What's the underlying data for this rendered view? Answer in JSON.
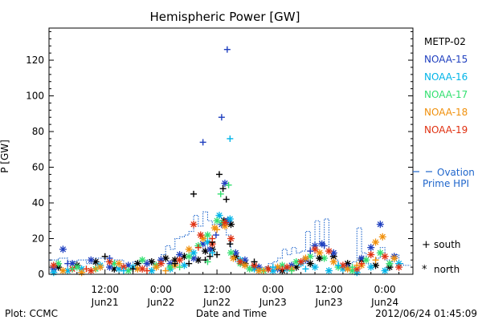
{
  "chart_data": {
    "type": "scatter",
    "title": "Hemispheric Power [GW]",
    "xlabel": "Date and Time",
    "ylabel": "P [GW]",
    "xlim_hours": [
      0,
      78
    ],
    "ylim": [
      0,
      138
    ],
    "y_ticks": [
      0,
      20,
      40,
      60,
      80,
      100,
      120
    ],
    "x_ticks": [
      {
        "h": 12,
        "time": "12:00",
        "date": "Jun21"
      },
      {
        "h": 24,
        "time": "0:00",
        "date": "Jun22"
      },
      {
        "h": 36,
        "time": "12:00",
        "date": "Jun22"
      },
      {
        "h": 48,
        "time": "0:00",
        "date": "Jun23"
      },
      {
        "h": 60,
        "time": "12:00",
        "date": "Jun23"
      },
      {
        "h": 72,
        "time": "0:00",
        "date": "Jun24"
      }
    ],
    "legend_position": "right",
    "satellites": [
      {
        "name": "METP-02",
        "color": "#000000"
      },
      {
        "name": "NOAA-15",
        "color": "#1f3fbf"
      },
      {
        "name": "NOAA-16",
        "color": "#00b4e8"
      },
      {
        "name": "NOAA-17",
        "color": "#33e070"
      },
      {
        "name": "NOAA-18",
        "color": "#f0900c"
      },
      {
        "name": "NOAA-19",
        "color": "#e03010"
      }
    ],
    "ovation_label": [
      "Ovation",
      "Prime HPI"
    ],
    "ovation_color": "#1f66cc",
    "ovation": [
      [
        0,
        8
      ],
      [
        2,
        9
      ],
      [
        4,
        7
      ],
      [
        6,
        8
      ],
      [
        8,
        6
      ],
      [
        10,
        9
      ],
      [
        12,
        7
      ],
      [
        14,
        8
      ],
      [
        16,
        5
      ],
      [
        18,
        7
      ],
      [
        20,
        8
      ],
      [
        22,
        6
      ],
      [
        24,
        11
      ],
      [
        25,
        16
      ],
      [
        26,
        14
      ],
      [
        27,
        20
      ],
      [
        28,
        21
      ],
      [
        29,
        22
      ],
      [
        30,
        24
      ],
      [
        31,
        33
      ],
      [
        32,
        27
      ],
      [
        33,
        35
      ],
      [
        34,
        30
      ],
      [
        35,
        28
      ],
      [
        36,
        32
      ],
      [
        37,
        31
      ],
      [
        38,
        22
      ],
      [
        39,
        9
      ],
      [
        40,
        7
      ],
      [
        41,
        5
      ],
      [
        42,
        4
      ],
      [
        43,
        3
      ],
      [
        44,
        5
      ],
      [
        45,
        3
      ],
      [
        46,
        4
      ],
      [
        47,
        6
      ],
      [
        48,
        7
      ],
      [
        49,
        9
      ],
      [
        50,
        14
      ],
      [
        51,
        11
      ],
      [
        52,
        15
      ],
      [
        53,
        12
      ],
      [
        54,
        13
      ],
      [
        55,
        24
      ],
      [
        56,
        10
      ],
      [
        57,
        30
      ],
      [
        58,
        17
      ],
      [
        59,
        31
      ],
      [
        60,
        13
      ],
      [
        61,
        8
      ],
      [
        62,
        6
      ],
      [
        63,
        5
      ],
      [
        64,
        4
      ],
      [
        65,
        7
      ],
      [
        66,
        26
      ],
      [
        67,
        12
      ],
      [
        68,
        6
      ],
      [
        69,
        5
      ],
      [
        70,
        9
      ],
      [
        71,
        15
      ],
      [
        72,
        8
      ],
      [
        73,
        7
      ],
      [
        74,
        11
      ],
      [
        75,
        6
      ],
      [
        76,
        5
      ]
    ],
    "south": [
      {
        "sat": "METP-02",
        "points": [
          [
            31,
            45
          ],
          [
            35,
            18
          ],
          [
            36.5,
            56
          ],
          [
            37.3,
            48
          ],
          [
            38,
            42
          ],
          [
            38.8,
            17
          ],
          [
            36,
            11
          ],
          [
            34.5,
            10
          ],
          [
            33.5,
            8
          ],
          [
            30,
            6
          ],
          [
            27,
            6
          ],
          [
            12,
            10
          ],
          [
            18,
            3
          ],
          [
            44,
            7
          ],
          [
            58,
            9
          ]
        ]
      },
      {
        "sat": "NOAA-15",
        "points": [
          [
            33,
            74
          ],
          [
            37,
            88
          ],
          [
            38.2,
            126
          ],
          [
            35.8,
            22
          ],
          [
            13,
            9
          ],
          [
            4,
            6
          ],
          [
            56,
            13
          ],
          [
            59,
            16
          ]
        ]
      },
      {
        "sat": "NOAA-16",
        "points": [
          [
            38.8,
            76
          ],
          [
            35,
            12
          ],
          [
            16,
            2
          ],
          [
            48,
            4
          ],
          [
            55,
            3
          ],
          [
            62,
            5
          ]
        ]
      },
      {
        "sat": "NOAA-17",
        "points": [
          [
            36.8,
            45
          ],
          [
            38.5,
            50
          ],
          [
            34,
            7
          ],
          [
            5,
            3
          ],
          [
            28,
            4
          ],
          [
            52,
            2
          ],
          [
            65,
            4
          ]
        ]
      },
      {
        "sat": "NOAA-18",
        "points": [
          [
            36,
            25
          ],
          [
            10,
            3
          ],
          [
            25,
            2
          ],
          [
            46,
            2
          ],
          [
            66,
            5
          ],
          [
            70,
            8
          ]
        ]
      },
      {
        "sat": "NOAA-19",
        "points": [
          [
            32,
            15
          ],
          [
            35,
            20
          ],
          [
            8,
            3
          ],
          [
            21,
            2
          ],
          [
            50,
            3
          ],
          [
            67,
            6
          ]
        ]
      }
    ],
    "north": [
      {
        "sat": "METP-02",
        "points": [
          [
            2,
            4
          ],
          [
            6,
            5
          ],
          [
            10,
            7
          ],
          [
            14,
            3
          ],
          [
            19,
            6
          ],
          [
            22,
            7
          ],
          [
            25,
            9
          ],
          [
            27,
            8
          ],
          [
            29,
            10
          ],
          [
            32,
            8
          ],
          [
            33.5,
            13
          ],
          [
            35,
            14
          ],
          [
            37.5,
            30
          ],
          [
            39,
            28
          ],
          [
            40,
            10
          ],
          [
            42,
            6
          ],
          [
            44,
            4
          ],
          [
            47,
            3
          ],
          [
            50,
            2
          ],
          [
            53,
            4
          ],
          [
            56,
            6
          ],
          [
            58,
            9
          ],
          [
            61,
            10
          ],
          [
            64,
            6
          ],
          [
            67,
            8
          ],
          [
            70,
            5
          ],
          [
            73,
            4
          ]
        ]
      },
      {
        "sat": "NOAA-15",
        "points": [
          [
            1,
            3
          ],
          [
            3,
            14
          ],
          [
            5,
            6
          ],
          [
            9,
            8
          ],
          [
            13,
            4
          ],
          [
            17,
            5
          ],
          [
            21,
            6
          ],
          [
            24,
            8
          ],
          [
            26,
            6
          ],
          [
            28,
            11
          ],
          [
            31,
            9
          ],
          [
            33,
            17
          ],
          [
            34.5,
            14
          ],
          [
            37,
            28
          ],
          [
            37.7,
            51
          ],
          [
            38.3,
            30
          ],
          [
            40,
            12
          ],
          [
            42,
            8
          ],
          [
            45,
            4
          ],
          [
            49,
            3
          ],
          [
            52,
            5
          ],
          [
            55,
            8
          ],
          [
            57,
            16
          ],
          [
            58.5,
            17
          ],
          [
            61,
            12
          ],
          [
            64,
            4
          ],
          [
            67,
            9
          ],
          [
            69,
            15
          ],
          [
            71,
            28
          ],
          [
            74,
            10
          ]
        ]
      },
      {
        "sat": "NOAA-16",
        "points": [
          [
            1,
            1
          ],
          [
            4,
            2
          ],
          [
            7,
            3
          ],
          [
            11,
            5
          ],
          [
            15,
            3
          ],
          [
            18,
            4
          ],
          [
            22,
            2
          ],
          [
            26,
            3
          ],
          [
            29,
            5
          ],
          [
            31,
            12
          ],
          [
            34,
            18
          ],
          [
            36.5,
            33
          ],
          [
            38.8,
            31
          ],
          [
            41,
            8
          ],
          [
            44,
            3
          ],
          [
            48,
            2
          ],
          [
            51,
            3
          ],
          [
            54,
            6
          ],
          [
            57,
            4
          ],
          [
            60,
            2
          ],
          [
            63,
            3
          ],
          [
            66,
            1
          ],
          [
            69,
            4
          ],
          [
            72,
            2
          ],
          [
            75,
            6
          ]
        ]
      },
      {
        "sat": "NOAA-17",
        "points": [
          [
            2,
            6
          ],
          [
            6,
            4
          ],
          [
            10,
            3
          ],
          [
            14,
            6
          ],
          [
            17,
            2
          ],
          [
            20,
            8
          ],
          [
            23,
            5
          ],
          [
            26,
            4
          ],
          [
            30,
            10
          ],
          [
            32,
            16
          ],
          [
            34,
            22
          ],
          [
            36,
            30
          ],
          [
            37.2,
            29
          ],
          [
            39,
            12
          ],
          [
            41,
            6
          ],
          [
            43,
            3
          ],
          [
            46,
            2
          ],
          [
            50,
            5
          ],
          [
            53,
            7
          ],
          [
            56,
            10
          ],
          [
            59,
            9
          ],
          [
            62,
            4
          ],
          [
            65,
            2
          ],
          [
            68,
            8
          ],
          [
            71,
            12
          ],
          [
            73,
            6
          ]
        ]
      },
      {
        "sat": "NOAA-18",
        "points": [
          [
            3,
            2
          ],
          [
            7,
            1
          ],
          [
            11,
            4
          ],
          [
            15,
            6
          ],
          [
            19,
            3
          ],
          [
            23,
            4
          ],
          [
            27,
            5
          ],
          [
            30,
            14
          ],
          [
            33,
            20
          ],
          [
            35.5,
            26
          ],
          [
            37.7,
            27
          ],
          [
            39.5,
            9
          ],
          [
            42,
            5
          ],
          [
            45,
            2
          ],
          [
            49,
            4
          ],
          [
            52,
            3
          ],
          [
            55,
            9
          ],
          [
            58,
            12
          ],
          [
            61,
            7
          ],
          [
            64,
            3
          ],
          [
            67,
            5
          ],
          [
            70,
            18
          ],
          [
            71.5,
            21
          ],
          [
            74,
            9
          ]
        ]
      },
      {
        "sat": "NOAA-19",
        "points": [
          [
            1,
            5
          ],
          [
            5,
            3
          ],
          [
            9,
            2
          ],
          [
            13,
            7
          ],
          [
            16,
            4
          ],
          [
            20,
            3
          ],
          [
            24,
            6
          ],
          [
            28,
            8
          ],
          [
            31,
            28
          ],
          [
            32.5,
            22
          ],
          [
            35,
            17
          ],
          [
            37.7,
            29
          ],
          [
            39,
            20
          ],
          [
            41,
            7
          ],
          [
            44,
            5
          ],
          [
            47,
            3
          ],
          [
            51,
            4
          ],
          [
            54,
            7
          ],
          [
            57,
            14
          ],
          [
            60,
            13
          ],
          [
            63,
            5
          ],
          [
            66,
            3
          ],
          [
            69,
            11
          ],
          [
            72,
            10
          ],
          [
            75,
            4
          ]
        ]
      }
    ],
    "marker_legend": [
      {
        "symbol": "+",
        "label": "south"
      },
      {
        "symbol": "*",
        "label": "north"
      }
    ]
  },
  "footer": {
    "left": "Plot: CCMC",
    "center": "Date and Time",
    "right": "2012/06/24 01:45:09"
  }
}
